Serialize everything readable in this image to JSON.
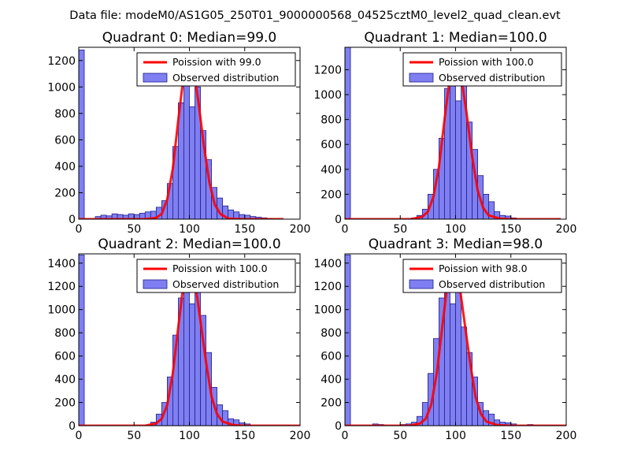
{
  "figure_title": "Data file: modeM0/AS1G05_250T01_9000000568_04525cztM0_level2_quad_clean.evt",
  "colors": {
    "bar_fill": "#7f7ff2",
    "bar_edge": "#1f1f8a",
    "curve": "#ff0000"
  },
  "chart_data": [
    {
      "type": "bar",
      "title": "Quadrant 0: Median=99.0",
      "xlim": [
        0,
        200
      ],
      "ylim": [
        0,
        1300
      ],
      "xticks": [
        0,
        50,
        100,
        150,
        200
      ],
      "yticks": [
        0,
        200,
        400,
        600,
        800,
        1000,
        1200
      ],
      "bin_width": 5,
      "legend": {
        "curve_label": "Poission with 99.0",
        "bars_label": "Observed distribution",
        "position": "top-right"
      },
      "bins": [
        {
          "x": 0,
          "y": 1280
        },
        {
          "x": 15,
          "y": 20
        },
        {
          "x": 20,
          "y": 30
        },
        {
          "x": 25,
          "y": 25
        },
        {
          "x": 30,
          "y": 40
        },
        {
          "x": 35,
          "y": 35
        },
        {
          "x": 40,
          "y": 30
        },
        {
          "x": 45,
          "y": 40
        },
        {
          "x": 50,
          "y": 35
        },
        {
          "x": 55,
          "y": 45
        },
        {
          "x": 60,
          "y": 55
        },
        {
          "x": 65,
          "y": 60
        },
        {
          "x": 70,
          "y": 90
        },
        {
          "x": 75,
          "y": 140
        },
        {
          "x": 80,
          "y": 270
        },
        {
          "x": 85,
          "y": 550
        },
        {
          "x": 90,
          "y": 880
        },
        {
          "x": 95,
          "y": 1100
        },
        {
          "x": 100,
          "y": 850
        },
        {
          "x": 105,
          "y": 1000
        },
        {
          "x": 110,
          "y": 670
        },
        {
          "x": 115,
          "y": 450
        },
        {
          "x": 120,
          "y": 240
        },
        {
          "x": 125,
          "y": 160
        },
        {
          "x": 130,
          "y": 100
        },
        {
          "x": 135,
          "y": 70
        },
        {
          "x": 140,
          "y": 55
        },
        {
          "x": 145,
          "y": 35
        },
        {
          "x": 150,
          "y": 30
        },
        {
          "x": 155,
          "y": 20
        },
        {
          "x": 160,
          "y": 15
        },
        {
          "x": 165,
          "y": 10
        },
        {
          "x": 170,
          "y": 5
        }
      ],
      "curve": {
        "x": [
          0,
          60,
          70,
          75,
          80,
          85,
          90,
          95,
          99,
          103,
          108,
          113,
          118,
          123,
          128,
          135,
          150,
          185
        ],
        "y": [
          0,
          0,
          10,
          40,
          150,
          380,
          750,
          1100,
          1230,
          1180,
          900,
          560,
          280,
          110,
          40,
          5,
          0,
          0
        ]
      }
    },
    {
      "type": "bar",
      "title": "Quadrant 1: Median=100.0",
      "xlim": [
        0,
        200
      ],
      "ylim": [
        0,
        1380
      ],
      "xticks": [
        0,
        50,
        100,
        150,
        200
      ],
      "yticks": [
        0,
        200,
        400,
        600,
        800,
        1000,
        1200
      ],
      "bin_width": 5,
      "legend": {
        "curve_label": "Poission with 100.0",
        "bars_label": "Observed distribution",
        "position": "top-right"
      },
      "bins": [
        {
          "x": 0,
          "y": 1380
        },
        {
          "x": 60,
          "y": 10
        },
        {
          "x": 65,
          "y": 30
        },
        {
          "x": 70,
          "y": 80
        },
        {
          "x": 75,
          "y": 200
        },
        {
          "x": 80,
          "y": 400
        },
        {
          "x": 85,
          "y": 650
        },
        {
          "x": 90,
          "y": 1050
        },
        {
          "x": 95,
          "y": 1250
        },
        {
          "x": 100,
          "y": 950
        },
        {
          "x": 105,
          "y": 1100
        },
        {
          "x": 110,
          "y": 780
        },
        {
          "x": 115,
          "y": 560
        },
        {
          "x": 120,
          "y": 350
        },
        {
          "x": 125,
          "y": 200
        },
        {
          "x": 130,
          "y": 140
        },
        {
          "x": 135,
          "y": 60
        },
        {
          "x": 140,
          "y": 30
        },
        {
          "x": 145,
          "y": 25
        },
        {
          "x": 150,
          "y": 10
        }
      ],
      "curve": {
        "x": [
          0,
          60,
          70,
          75,
          80,
          85,
          90,
          95,
          100,
          105,
          110,
          115,
          120,
          125,
          130,
          140,
          150,
          195
        ],
        "y": [
          0,
          0,
          20,
          60,
          180,
          420,
          800,
          1150,
          1290,
          1150,
          850,
          500,
          230,
          90,
          30,
          5,
          0,
          0
        ]
      }
    },
    {
      "type": "bar",
      "title": "Quadrant 2: Median=100.0",
      "xlim": [
        0,
        200
      ],
      "ylim": [
        0,
        1480
      ],
      "xticks": [
        0,
        50,
        100,
        150,
        200
      ],
      "yticks": [
        0,
        200,
        400,
        600,
        800,
        1000,
        1200,
        1400
      ],
      "bin_width": 5,
      "legend": {
        "curve_label": "Poission with 100.0",
        "bars_label": "Observed distribution",
        "position": "top-right"
      },
      "bins": [
        {
          "x": 0,
          "y": 1470
        },
        {
          "x": 65,
          "y": 30
        },
        {
          "x": 70,
          "y": 100
        },
        {
          "x": 75,
          "y": 200
        },
        {
          "x": 80,
          "y": 420
        },
        {
          "x": 85,
          "y": 780
        },
        {
          "x": 90,
          "y": 1100
        },
        {
          "x": 95,
          "y": 1300
        },
        {
          "x": 100,
          "y": 1050
        },
        {
          "x": 105,
          "y": 1250
        },
        {
          "x": 110,
          "y": 950
        },
        {
          "x": 115,
          "y": 630
        },
        {
          "x": 120,
          "y": 330
        },
        {
          "x": 125,
          "y": 180
        },
        {
          "x": 130,
          "y": 130
        },
        {
          "x": 135,
          "y": 60
        },
        {
          "x": 140,
          "y": 50
        },
        {
          "x": 145,
          "y": 25
        },
        {
          "x": 150,
          "y": 15
        }
      ],
      "curve": {
        "x": [
          0,
          60,
          70,
          75,
          80,
          85,
          90,
          95,
          100,
          105,
          110,
          115,
          120,
          125,
          130,
          140,
          150,
          200
        ],
        "y": [
          0,
          0,
          20,
          60,
          180,
          450,
          850,
          1250,
          1400,
          1250,
          900,
          550,
          250,
          100,
          35,
          5,
          0,
          0
        ]
      }
    },
    {
      "type": "bar",
      "title": "Quadrant 3: Median=98.0",
      "xlim": [
        0,
        200
      ],
      "ylim": [
        0,
        1480
      ],
      "xticks": [
        0,
        50,
        100,
        150,
        200
      ],
      "yticks": [
        0,
        200,
        400,
        600,
        800,
        1000,
        1200,
        1400
      ],
      "bin_width": 5,
      "legend": {
        "curve_label": "Poission with 98.0",
        "bars_label": "Observed distribution",
        "position": "top-right"
      },
      "bins": [
        {
          "x": 0,
          "y": 1470
        },
        {
          "x": 25,
          "y": 15
        },
        {
          "x": 30,
          "y": 10
        },
        {
          "x": 50,
          "y": 10
        },
        {
          "x": 55,
          "y": 15
        },
        {
          "x": 60,
          "y": 30
        },
        {
          "x": 65,
          "y": 80
        },
        {
          "x": 70,
          "y": 200
        },
        {
          "x": 75,
          "y": 450
        },
        {
          "x": 80,
          "y": 750
        },
        {
          "x": 85,
          "y": 1100
        },
        {
          "x": 90,
          "y": 1350
        },
        {
          "x": 95,
          "y": 1050
        },
        {
          "x": 100,
          "y": 1180
        },
        {
          "x": 105,
          "y": 850
        },
        {
          "x": 110,
          "y": 630
        },
        {
          "x": 115,
          "y": 420
        },
        {
          "x": 120,
          "y": 200
        },
        {
          "x": 125,
          "y": 130
        },
        {
          "x": 130,
          "y": 100
        },
        {
          "x": 135,
          "y": 50
        },
        {
          "x": 140,
          "y": 30
        },
        {
          "x": 145,
          "y": 25
        },
        {
          "x": 150,
          "y": 15
        },
        {
          "x": 165,
          "y": 10
        }
      ],
      "curve": {
        "x": [
          0,
          58,
          68,
          73,
          78,
          83,
          88,
          93,
          98,
          103,
          108,
          113,
          118,
          123,
          128,
          138,
          150,
          200
        ],
        "y": [
          0,
          0,
          20,
          60,
          180,
          450,
          850,
          1250,
          1400,
          1250,
          900,
          550,
          250,
          100,
          35,
          5,
          0,
          0
        ]
      }
    }
  ]
}
